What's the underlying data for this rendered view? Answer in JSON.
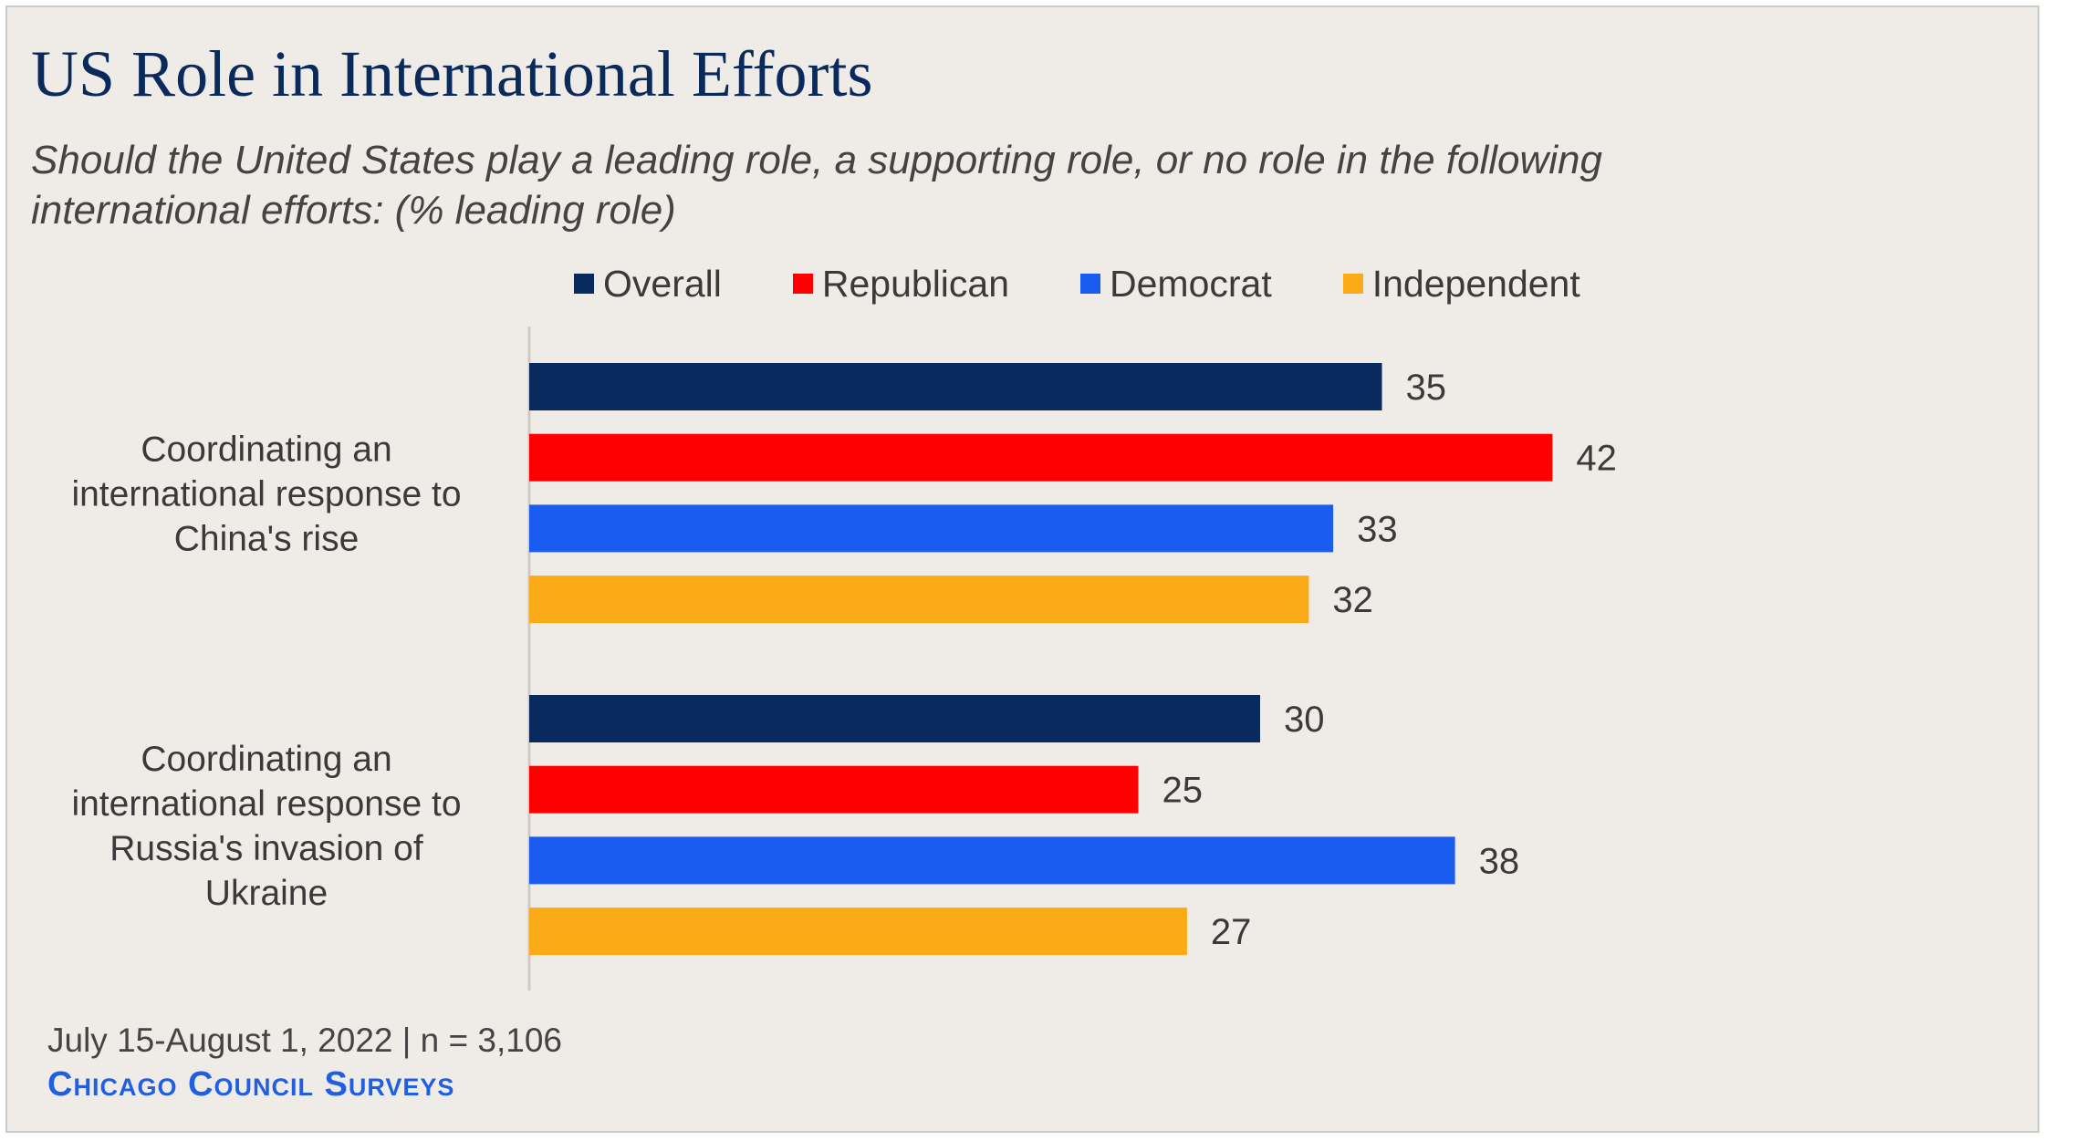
{
  "chart_data": {
    "type": "bar",
    "orientation": "horizontal",
    "title": "US Role in International Efforts",
    "subtitle_lines": [
      "Should the United States play a leading role, a supporting role, or no role in the following",
      "international efforts: (% leading role)"
    ],
    "categories": [
      {
        "lines": [
          "Coordinating an",
          "international response to",
          "China's rise"
        ]
      },
      {
        "lines": [
          "Coordinating an",
          "international response to",
          "Russia's invasion of",
          "Ukraine"
        ]
      }
    ],
    "series": [
      {
        "name": "Overall",
        "color": "#082a5e",
        "values": [
          35,
          30
        ]
      },
      {
        "name": "Republican",
        "color": "#ff0000",
        "values": [
          42,
          25
        ]
      },
      {
        "name": "Democrat",
        "color": "#1a5cf0",
        "values": [
          33,
          38
        ]
      },
      {
        "name": "Independent",
        "color": "#fbab18",
        "values": [
          32,
          27
        ]
      }
    ],
    "xlim": [
      0,
      50
    ],
    "grid": false,
    "legend_position": "top"
  },
  "footer": {
    "source": "July 15-August 1, 2022 | n = 3,106",
    "brand": "Chicago Council Surveys"
  }
}
